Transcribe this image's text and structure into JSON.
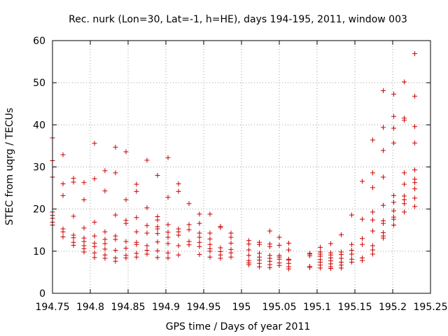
{
  "chart_data": {
    "type": "scatter",
    "title": "Rec. nurk (Lon=30, Lat=-1, h=HE), days 194-195, 2011, window 003",
    "xlabel": "GPS time / Days of year 2011",
    "ylabel": "STEC from uqrg / TECUs",
    "xlim": [
      194.75,
      195.25
    ],
    "ylim": [
      0,
      60
    ],
    "xticks": [
      "194.75",
      "194.8",
      "194.85",
      "194.9",
      "194.95",
      "195",
      "195.05",
      "195.1",
      "195.15",
      "195.2",
      "195.25"
    ],
    "yticks": [
      "0",
      "10",
      "20",
      "30",
      "40",
      "50",
      "60"
    ],
    "grid": true,
    "marker": "+",
    "color": "#cc0000",
    "columns": [
      {
        "x": 194.75,
        "y": [
          16.2,
          16.9,
          17.8,
          18.5,
          19.3,
          27.6,
          31.5,
          36.9
        ]
      },
      {
        "x": 194.7639,
        "y": [
          13.4,
          14.6,
          15.3,
          23.2,
          26.0,
          32.9
        ]
      },
      {
        "x": 194.7778,
        "y": [
          11.4,
          12.1,
          13.2,
          13.8,
          18.3,
          26.4,
          27.3
        ]
      },
      {
        "x": 194.7917,
        "y": [
          9.8,
          10.6,
          11.3,
          12.3,
          13.1,
          15.5,
          22.2,
          26.3
        ]
      },
      {
        "x": 194.8056,
        "y": [
          8.5,
          9.6,
          11.1,
          11.9,
          13.6,
          16.9,
          27.2,
          35.6
        ]
      },
      {
        "x": 194.8194,
        "y": [
          8.3,
          9.1,
          10.5,
          11.8,
          12.8,
          14.6,
          24.3,
          29.1
        ]
      },
      {
        "x": 194.8333,
        "y": [
          7.6,
          8.4,
          10.2,
          12.8,
          13.6,
          18.6,
          28.6,
          34.7
        ]
      },
      {
        "x": 194.8472,
        "y": [
          8.4,
          9.0,
          10.7,
          12.3,
          16.6,
          17.3,
          22.2,
          33.6
        ]
      },
      {
        "x": 194.8611,
        "y": [
          8.6,
          9.5,
          11.6,
          12.1,
          14.6,
          18.0,
          24.2,
          25.9
        ]
      },
      {
        "x": 194.875,
        "y": [
          9.3,
          10.2,
          11.3,
          14.3,
          16.1,
          20.3,
          31.6
        ]
      },
      {
        "x": 194.8889,
        "y": [
          8.5,
          10.1,
          12.2,
          14.2,
          15.3,
          15.8,
          17.4,
          18.2,
          28.0
        ]
      },
      {
        "x": 194.9028,
        "y": [
          8.4,
          9.6,
          11.8,
          13.3,
          14.5,
          16.3,
          22.8,
          32.2
        ]
      },
      {
        "x": 194.9167,
        "y": [
          9.1,
          11.3,
          13.8,
          14.6,
          15.3,
          24.2,
          26.0
        ]
      },
      {
        "x": 194.9306,
        "y": [
          11.5,
          12.3,
          15.1,
          16.3,
          21.3
        ]
      },
      {
        "x": 194.9444,
        "y": [
          9.2,
          11.1,
          12.1,
          13.3,
          14.3,
          16.6,
          18.8
        ]
      },
      {
        "x": 194.9583,
        "y": [
          8.6,
          10.0,
          10.6,
          11.6,
          12.9,
          14.3,
          18.8
        ]
      },
      {
        "x": 194.9722,
        "y": [
          8.3,
          9.1,
          9.9,
          10.8,
          15.6,
          15.9
        ]
      },
      {
        "x": 194.9861,
        "y": [
          8.6,
          9.6,
          10.4,
          11.9,
          13.3,
          14.3
        ]
      },
      {
        "x": 195.0097,
        "y": [
          6.8,
          7.2,
          7.7,
          9.0,
          10.3,
          11.7,
          12.5
        ]
      },
      {
        "x": 195.0236,
        "y": [
          6.3,
          7.1,
          7.9,
          8.6,
          9.5,
          11.6,
          12.1
        ]
      },
      {
        "x": 195.0375,
        "y": [
          6.1,
          6.8,
          7.6,
          8.3,
          9.0,
          11.1,
          11.7,
          14.8
        ]
      },
      {
        "x": 195.05,
        "y": [
          6.6,
          7.2,
          8.1,
          8.6,
          9.0,
          11.4,
          13.3
        ]
      },
      {
        "x": 195.0625,
        "y": [
          5.8,
          6.3,
          7.1,
          7.9,
          8.1,
          10.3,
          11.9
        ]
      },
      {
        "x": 195.0903,
        "y": [
          6.1,
          6.4,
          8.9,
          9.3,
          9.5
        ]
      },
      {
        "x": 195.1042,
        "y": [
          6.0,
          6.7,
          7.4,
          8.0,
          8.8,
          9.3,
          9.8,
          10.9
        ]
      },
      {
        "x": 195.1181,
        "y": [
          5.9,
          6.3,
          7.0,
          7.7,
          8.4,
          9.1,
          9.6,
          11.8
        ]
      },
      {
        "x": 195.1319,
        "y": [
          6.0,
          6.7,
          7.4,
          8.3,
          9.2,
          9.8,
          13.9
        ]
      },
      {
        "x": 195.1458,
        "y": [
          7.4,
          8.1,
          9.3,
          10.2,
          11.6,
          18.6
        ]
      },
      {
        "x": 195.1597,
        "y": [
          7.8,
          8.4,
          11.6,
          13.0,
          17.6,
          26.6
        ]
      },
      {
        "x": 195.1736,
        "y": [
          9.3,
          10.3,
          11.3,
          14.8,
          17.4,
          19.3,
          25.1,
          28.6,
          36.4
        ]
      },
      {
        "x": 195.1875,
        "y": [
          13.1,
          13.6,
          14.4,
          16.6,
          17.2,
          20.9,
          27.6,
          33.9,
          39.4,
          48.1
        ]
      },
      {
        "x": 195.2014,
        "y": [
          16.2,
          17.6,
          18.1,
          19.6,
          21.6,
          23.2,
          35.7,
          39.2,
          42.0,
          47.3
        ]
      },
      {
        "x": 195.2153,
        "y": [
          19.3,
          21.3,
          22.2,
          23.1,
          25.9,
          28.6,
          41.1,
          41.6,
          50.2
        ]
      },
      {
        "x": 195.2292,
        "y": [
          20.6,
          22.6,
          24.8,
          26.3,
          27.1,
          29.3,
          35.7,
          39.6,
          46.8,
          56.9
        ]
      }
    ]
  }
}
